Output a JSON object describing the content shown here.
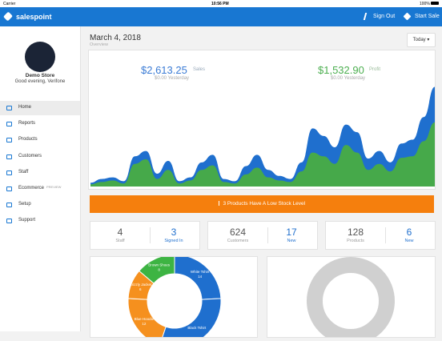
{
  "status_bar": {
    "carrier": "Carrier",
    "time": "10:56 PM",
    "battery": "100%"
  },
  "header": {
    "brand": "salespoint",
    "actions": [
      "Sign Out",
      "Start Sale"
    ]
  },
  "sidebar": {
    "store_name": "Demo Store",
    "greeting": "Good evening, Verifone",
    "nav": [
      {
        "label": "Home"
      },
      {
        "label": "Reports"
      },
      {
        "label": "Products"
      },
      {
        "label": "Customers"
      },
      {
        "label": "Staff"
      },
      {
        "label": "Ecommerce",
        "badge": "PREVIEW"
      },
      {
        "label": "Setup"
      },
      {
        "label": "Support"
      }
    ]
  },
  "main": {
    "date": "March 4, 2018",
    "subtitle": "Overview",
    "range": "Today",
    "sales": {
      "value": "$2,613.25",
      "label": "Sales",
      "previous": "$0.00 Yesterday"
    },
    "profit": {
      "value": "$1,532.90",
      "label": "Profit",
      "previous": "$0.00 Yesterday"
    },
    "alert": "3 Products Have A Low Stock Level",
    "stats": [
      {
        "value": "4",
        "label": "Staff",
        "extra_value": "3",
        "extra_label": "Signed In"
      },
      {
        "value": "624",
        "label": "Customers",
        "extra_value": "17",
        "extra_label": "New"
      },
      {
        "value": "128",
        "label": "Products",
        "extra_value": "6",
        "extra_label": "New"
      }
    ]
  },
  "chart_data": [
    {
      "type": "area",
      "ylim": [
        0,
        140
      ],
      "series": [
        {
          "name": "Sales",
          "color": "#1f6fce",
          "values": [
            5,
            10,
            12,
            7,
            40,
            47,
            17,
            34,
            7,
            12,
            32,
            42,
            10,
            7,
            27,
            42,
            22,
            14,
            10,
            32,
            77,
            67,
            52,
            82,
            72,
            37,
            47,
            32,
            57,
            62,
            92,
            132
          ]
        },
        {
          "name": "Profit",
          "color": "#46a94a",
          "values": [
            3,
            6,
            8,
            4,
            30,
            36,
            10,
            22,
            4,
            8,
            22,
            28,
            6,
            4,
            16,
            25,
            12,
            8,
            6,
            20,
            45,
            40,
            30,
            55,
            45,
            22,
            30,
            20,
            38,
            40,
            60,
            85
          ]
        }
      ]
    },
    {
      "type": "donut",
      "categories": [
        "White Tshirt",
        "Black Tshirt",
        "Blue Hoodie",
        "Grizzly Jacket",
        "Brown Shoes"
      ],
      "values": [
        14,
        18,
        12,
        6,
        8
      ],
      "value_labels": [
        "14",
        null,
        "12",
        "6",
        "8"
      ],
      "colors": [
        "#1f6fce",
        "#1f6fce",
        "#f5901e",
        "#f5901e",
        "#3db443"
      ]
    }
  ]
}
